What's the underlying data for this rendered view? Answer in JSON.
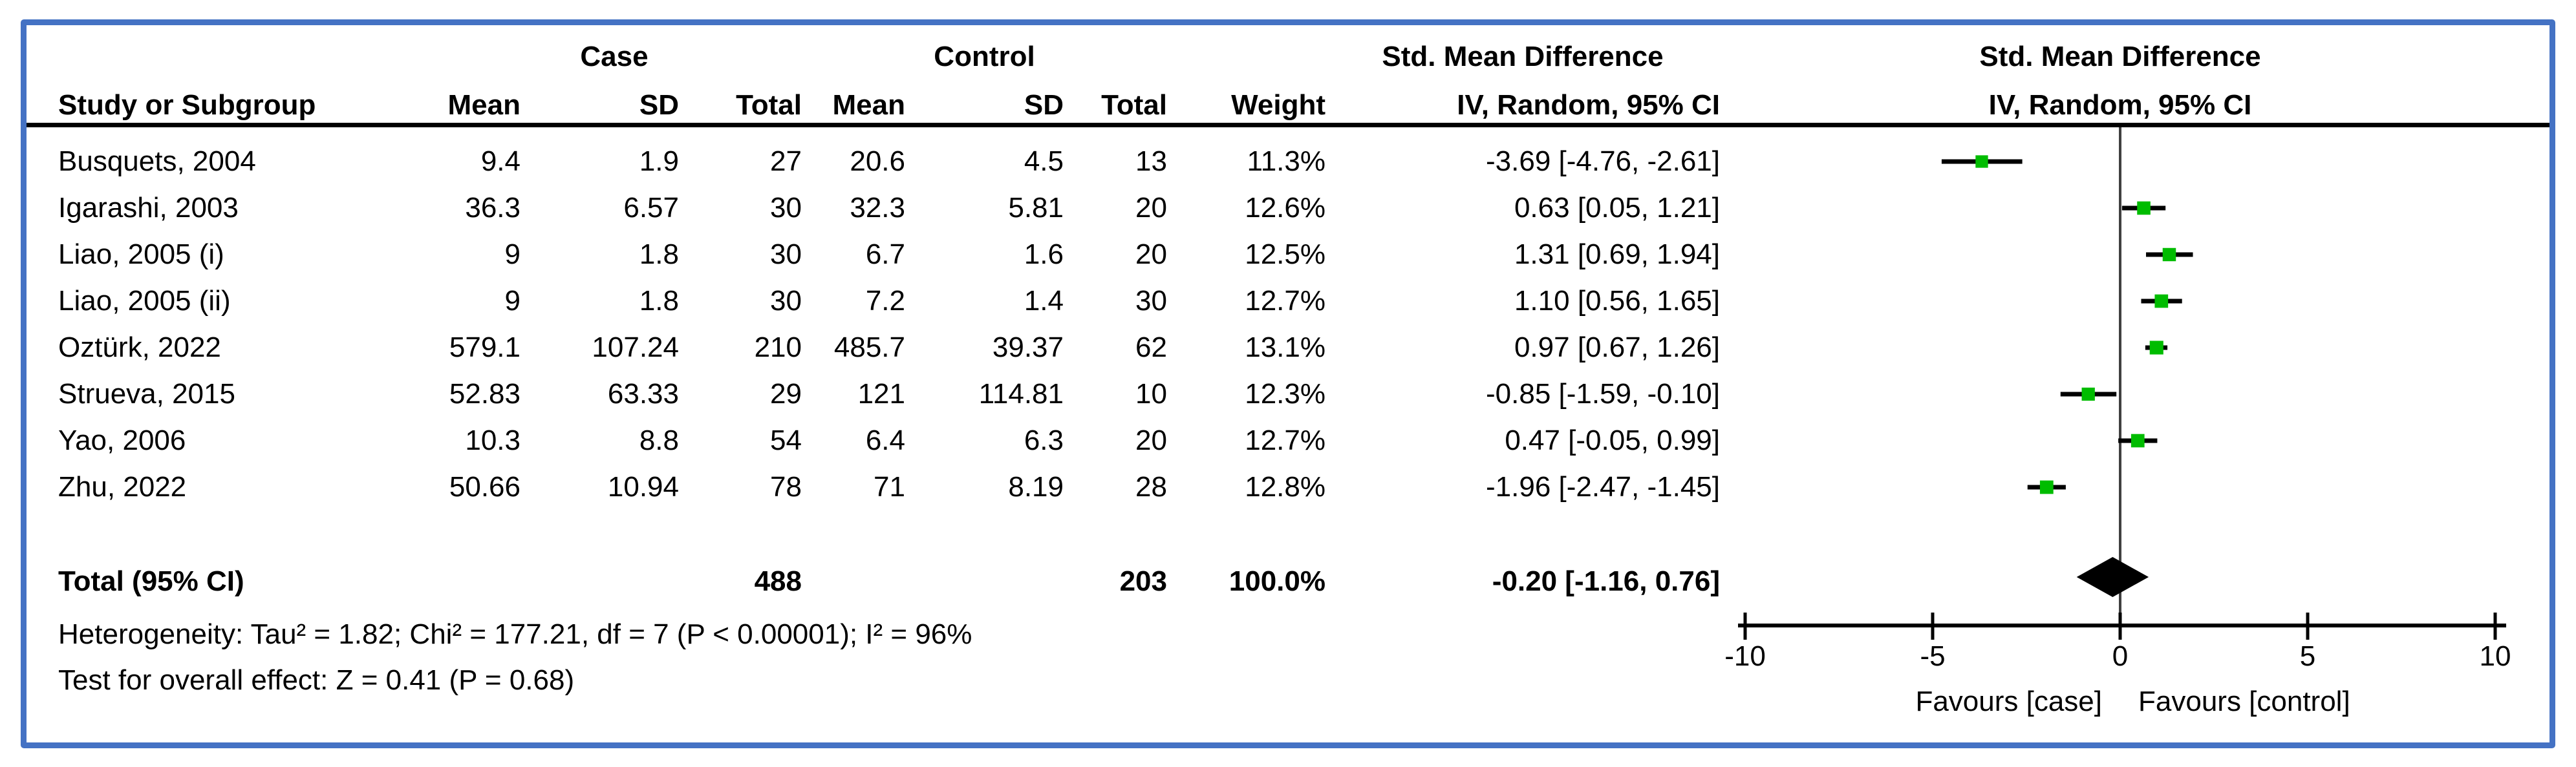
{
  "frame": {
    "border_color": "#4472C4"
  },
  "table": {
    "group_headers": {
      "case": "Case",
      "control": "Control",
      "smd": "Std. Mean Difference"
    },
    "col_headers": {
      "study": "Study or Subgroup",
      "mean": "Mean",
      "sd": "SD",
      "total": "Total",
      "weight": "Weight",
      "iv": "IV, Random, 95% CI"
    },
    "rows": [
      {
        "study": "Busquets, 2004",
        "case_mean": "9.4",
        "case_sd": "1.9",
        "case_total": "27",
        "ctrl_mean": "20.6",
        "ctrl_sd": "4.5",
        "ctrl_total": "13",
        "weight": "11.3%",
        "smd_ci": "-3.69 [-4.76, -2.61]"
      },
      {
        "study": "Igarashi, 2003",
        "case_mean": "36.3",
        "case_sd": "6.57",
        "case_total": "30",
        "ctrl_mean": "32.3",
        "ctrl_sd": "5.81",
        "ctrl_total": "20",
        "weight": "12.6%",
        "smd_ci": "0.63 [0.05, 1.21]"
      },
      {
        "study": "Liao, 2005 (i)",
        "case_mean": "9",
        "case_sd": "1.8",
        "case_total": "30",
        "ctrl_mean": "6.7",
        "ctrl_sd": "1.6",
        "ctrl_total": "20",
        "weight": "12.5%",
        "smd_ci": "1.31 [0.69, 1.94]"
      },
      {
        "study": "Liao, 2005 (ii)",
        "case_mean": "9",
        "case_sd": "1.8",
        "case_total": "30",
        "ctrl_mean": "7.2",
        "ctrl_sd": "1.4",
        "ctrl_total": "30",
        "weight": "12.7%",
        "smd_ci": "1.10 [0.56, 1.65]"
      },
      {
        "study": "Oztürk, 2022",
        "case_mean": "579.1",
        "case_sd": "107.24",
        "case_total": "210",
        "ctrl_mean": "485.7",
        "ctrl_sd": "39.37",
        "ctrl_total": "62",
        "weight": "13.1%",
        "smd_ci": "0.97 [0.67, 1.26]"
      },
      {
        "study": "Strueva, 2015",
        "case_mean": "52.83",
        "case_sd": "63.33",
        "case_total": "29",
        "ctrl_mean": "121",
        "ctrl_sd": "114.81",
        "ctrl_total": "10",
        "weight": "12.3%",
        "smd_ci": "-0.85 [-1.59, -0.10]"
      },
      {
        "study": "Yao, 2006",
        "case_mean": "10.3",
        "case_sd": "8.8",
        "case_total": "54",
        "ctrl_mean": "6.4",
        "ctrl_sd": "6.3",
        "ctrl_total": "20",
        "weight": "12.7%",
        "smd_ci": "0.47 [-0.05, 0.99]"
      },
      {
        "study": "Zhu, 2022",
        "case_mean": "50.66",
        "case_sd": "10.94",
        "case_total": "78",
        "ctrl_mean": "71",
        "ctrl_sd": "8.19",
        "ctrl_total": "28",
        "weight": "12.8%",
        "smd_ci": "-1.96 [-2.47, -1.45]"
      }
    ],
    "total_row": {
      "label": "Total (95% CI)",
      "case_total": "488",
      "ctrl_total": "203",
      "weight": "100.0%",
      "smd_ci": "-0.20 [-1.16, 0.76]"
    },
    "heterogeneity": "Heterogeneity: Tau² = 1.82; Chi² = 177.21, df = 7 (P < 0.00001); I² = 96%",
    "overall_effect": "Test for overall effect: Z = 0.41 (P = 0.68)"
  },
  "plot": {
    "header_line1": "Std. Mean Difference",
    "header_line2": "IV, Random, 95% CI",
    "marker_color": "#00BC00",
    "axis_color": "#000000",
    "zero_line_color": "#404040",
    "diamond_color": "#000000"
  },
  "chart_data": {
    "type": "forest",
    "title": "Std. Mean Difference — IV, Random, 95% CI",
    "studies": [
      "Busquets, 2004",
      "Igarashi, 2003",
      "Liao, 2005 (i)",
      "Liao, 2005 (ii)",
      "Oztürk, 2022",
      "Strueva, 2015",
      "Yao, 2006",
      "Zhu, 2022"
    ],
    "estimates": [
      -3.69,
      0.63,
      1.31,
      1.1,
      0.97,
      -0.85,
      0.47,
      -1.96
    ],
    "ci_low": [
      -4.76,
      0.05,
      0.69,
      0.56,
      0.67,
      -1.59,
      -0.05,
      -2.47
    ],
    "ci_high": [
      -2.61,
      1.21,
      1.94,
      1.65,
      1.26,
      -0.1,
      0.99,
      -1.45
    ],
    "weights_pct": [
      11.3,
      12.6,
      12.5,
      12.7,
      13.1,
      12.3,
      12.7,
      12.8
    ],
    "total": {
      "label": "Total (95% CI)",
      "estimate": -0.2,
      "ci_low": -1.16,
      "ci_high": 0.76
    },
    "xlim": [
      -10,
      10
    ],
    "x_ticks": [
      -10,
      -5,
      0,
      5,
      10
    ],
    "x_label_left": "Favours [case]",
    "x_label_right": "Favours [control]",
    "legend_position": "none",
    "grid": false
  }
}
